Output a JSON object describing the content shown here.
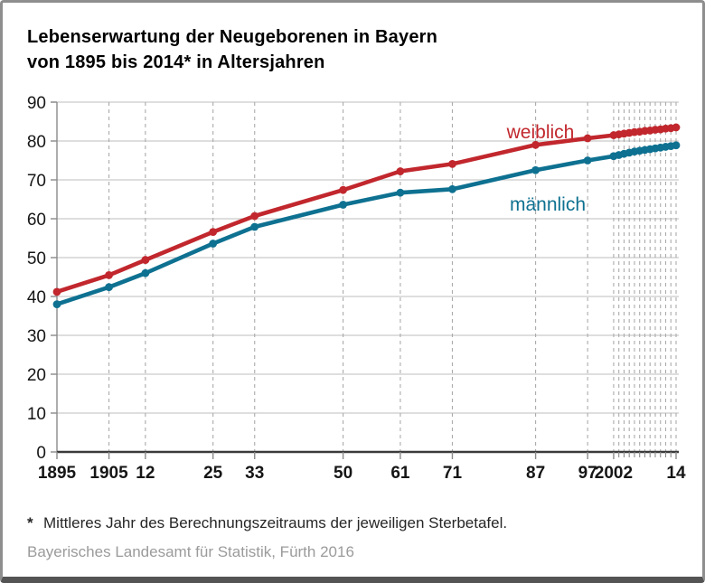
{
  "header": {
    "title_line1": "Lebenserwartung der Neugeborenen in Bayern",
    "title_line2": "von 1895 bis 2014* in Altersjahren"
  },
  "footnote": {
    "marker": "*",
    "text": "Mittleres Jahr des Berechnungszeitraums der jeweiligen Sterbetafel."
  },
  "source": "Bayerisches Landesamt für Statistik, Fürth 2016",
  "colors": {
    "weiblich": "#c1272d",
    "maennlich": "#0e7191",
    "grid": "#c9c9c9",
    "grid_dashed": "#ababab",
    "axis_dark": "#3a3a3a",
    "axis_gray": "#8a8a8a",
    "tick_text": "#161616",
    "frame_border": "#8e8e8e",
    "frame_bottom": "#545454",
    "source_text": "#9b9b9b"
  },
  "chart_data": {
    "type": "line",
    "title": "Lebenserwartung der Neugeborenen in Bayern von 1895 bis 2014* in Altersjahren",
    "xlabel": "",
    "ylabel": "",
    "ylim": [
      0,
      90
    ],
    "ytick_step": 10,
    "grid": "horizontal-solid, vertical-dashed",
    "legend_position": "inline-labels",
    "x": [
      1895,
      1905,
      1912,
      1925,
      1933,
      1950,
      1961,
      1971,
      1987,
      1997,
      2002,
      2003,
      2004,
      2005,
      2006,
      2007,
      2008,
      2009,
      2010,
      2011,
      2012,
      2013,
      2014
    ],
    "x_ticks": [
      {
        "label": "1895",
        "year": 1895
      },
      {
        "label": "1905",
        "year": 1905
      },
      {
        "label": "12",
        "year": 1912
      },
      {
        "label": "25",
        "year": 1925
      },
      {
        "label": "33",
        "year": 1933
      },
      {
        "label": "50",
        "year": 1950
      },
      {
        "label": "61",
        "year": 1961
      },
      {
        "label": "71",
        "year": 1971
      },
      {
        "label": "87",
        "year": 1987
      },
      {
        "label": "97",
        "year": 1997
      },
      {
        "label": "2002",
        "year": 2002
      },
      {
        "label": "14",
        "year": 2014
      }
    ],
    "series": [
      {
        "name": "weiblich",
        "color": "#c1272d",
        "values": [
          41.2,
          45.5,
          49.4,
          56.6,
          60.7,
          67.4,
          72.2,
          74.1,
          79.0,
          80.7,
          81.5,
          81.7,
          81.9,
          82.1,
          82.3,
          82.4,
          82.6,
          82.7,
          82.9,
          83.0,
          83.2,
          83.3,
          83.5
        ]
      },
      {
        "name": "männlich",
        "color": "#0e7191",
        "values": [
          38.0,
          42.4,
          46.0,
          53.6,
          57.9,
          63.6,
          66.7,
          67.6,
          72.5,
          75.0,
          76.1,
          76.4,
          76.7,
          77.0,
          77.3,
          77.5,
          77.7,
          77.9,
          78.1,
          78.3,
          78.5,
          78.7,
          78.9
        ]
      }
    ]
  }
}
